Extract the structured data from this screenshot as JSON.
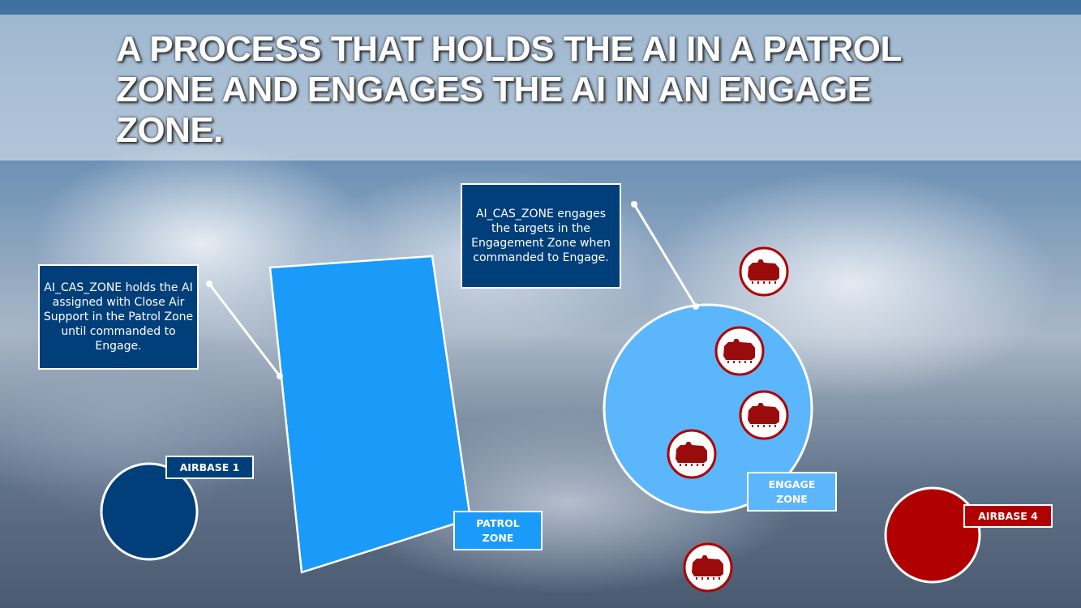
{
  "title": "A PROCESS THAT HOLDS THE AI IN A PATROL ZONE AND ENGAGES THE AI IN AN ENGAGE ZONE.",
  "notes": {
    "patrol": "AI_CAS_ZONE holds the AI assigned with Close Air Support in the Patrol Zone until commanded to Engage.",
    "engage": "AI_CAS_ZONE engages the targets in the Engagement Zone when commanded to Engage."
  },
  "labels": {
    "patrol_zone": "PATROL ZONE",
    "engage_zone": "ENGAGE ZONE",
    "airbase_1": "AIRBASE 1",
    "airbase_4": "AIRBASE 4"
  },
  "icons": {
    "target": "armored-vehicle-icon"
  },
  "colors": {
    "blue_dark": "#003f7a",
    "patrol_blue": "#1a9bfa",
    "engage_blue": "#5bb6fb",
    "red": "#b00000",
    "tank_red": "#9a0c0c"
  }
}
